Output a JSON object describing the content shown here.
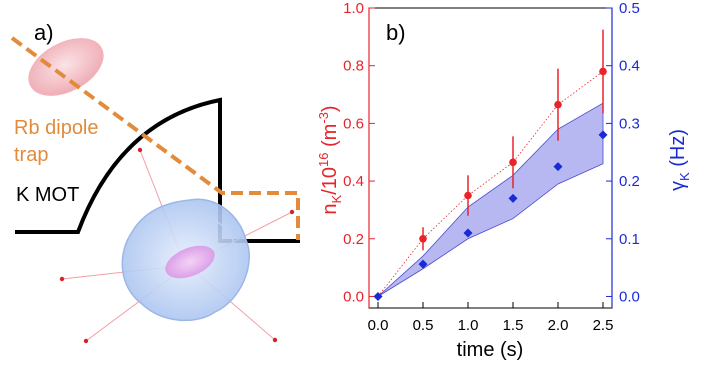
{
  "panel_a": {
    "label": "a)",
    "rb_label_line1": "Rb dipole",
    "rb_label_line2": "trap",
    "k_label": "K MOT",
    "colors": {
      "orange": "#e38b3a",
      "black": "#000000",
      "pink": "#f4b8c0",
      "blue": "#a9c4f0"
    }
  },
  "panel_b": {
    "label": "b)",
    "colors": {
      "red": "#e8242b",
      "blue": "#1a2bd6",
      "band": "#7b7ce8"
    }
  },
  "chart_data": {
    "type": "scatter",
    "panel_label": "b)",
    "xlabel": "time (s)",
    "ylabel_left_main": "n",
    "ylabel_left_sub": "K",
    "ylabel_left_rest": "/10",
    "ylabel_left_sup": "16",
    "ylabel_left_unit": " (m",
    "ylabel_left_unit_sup": "-3",
    "ylabel_left_unit_close": ")",
    "ylabel_right_main": "γ",
    "ylabel_right_sub": "K",
    "ylabel_right_unit": " (Hz)",
    "xlim": [
      -0.1,
      2.6
    ],
    "ylim_left": [
      -0.04,
      1.0
    ],
    "ylim_right": [
      -0.02,
      0.5
    ],
    "x_ticks": [
      "0.0",
      "0.5",
      "1.0",
      "1.5",
      "2.0",
      "2.5"
    ],
    "y_left_ticks": [
      "0.0",
      "0.2",
      "0.4",
      "0.6",
      "0.8",
      "1.0"
    ],
    "y_right_ticks": [
      "0.0",
      "0.1",
      "0.2",
      "0.3",
      "0.4",
      "0.5"
    ],
    "grid": false,
    "series": [
      {
        "axis": "left",
        "marker": "circle",
        "x": [
          0.5,
          1.0,
          1.5,
          2.0,
          2.5
        ],
        "y": [
          0.2,
          0.35,
          0.465,
          0.665,
          0.78
        ],
        "err": [
          0.04,
          0.07,
          0.09,
          0.125,
          0.145
        ]
      },
      {
        "axis": "right",
        "marker": "diamond",
        "x": [
          0.0,
          0.5,
          1.0,
          1.5,
          2.0,
          2.5
        ],
        "y": [
          0.0,
          0.056,
          0.11,
          0.17,
          0.225,
          0.28
        ]
      }
    ],
    "dotted_line": {
      "x": [
        0.0,
        0.5,
        1.0,
        1.5,
        2.0,
        2.5
      ],
      "y": [
        0.0,
        0.2,
        0.35,
        0.465,
        0.665,
        0.78
      ]
    },
    "band_right": {
      "x": [
        0.0,
        0.5,
        1.0,
        1.5,
        2.0,
        2.5
      ],
      "lower": [
        0.0,
        0.048,
        0.1,
        0.135,
        0.195,
        0.23
      ],
      "upper": [
        0.0,
        0.07,
        0.155,
        0.21,
        0.29,
        0.335
      ]
    }
  }
}
